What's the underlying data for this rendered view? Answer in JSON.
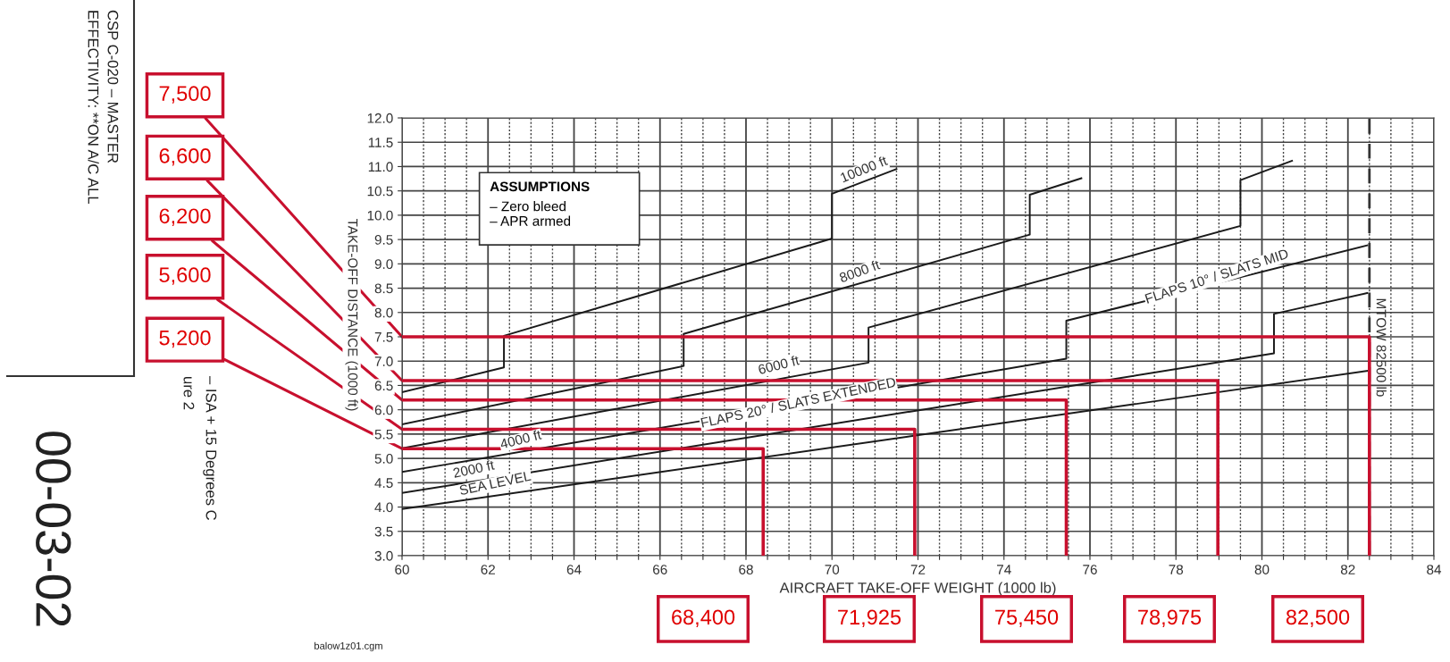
{
  "chart_data": {
    "type": "line",
    "xlabel": "AIRCRAFT TAKE-OFF WEIGHT (1000 lb)",
    "ylabel": "TAKE-OFF DISTANCE (1000 ft)",
    "xlim": [
      60,
      84
    ],
    "ylim": [
      3,
      12
    ],
    "xticks": [
      60,
      {
        "value": 60.5,
        "label": null
      },
      {
        "value": 61,
        "label": null
      },
      {
        "value": 61.5,
        "label": null
      },
      62,
      {
        "value": 62.5,
        "label": null
      },
      {
        "value": 63,
        "label": null
      },
      {
        "value": 63.5,
        "label": null
      },
      64,
      {
        "value": 64.5,
        "label": null
      },
      {
        "value": 65,
        "label": null
      },
      {
        "value": 65.5,
        "label": null
      },
      66,
      {
        "value": 66.5,
        "label": null
      },
      {
        "value": 67,
        "label": null
      },
      {
        "value": 67.5,
        "label": null
      },
      68,
      {
        "value": 68.5,
        "label": null
      },
      {
        "value": 69,
        "label": null
      },
      {
        "value": 69.5,
        "label": null
      },
      70,
      {
        "value": 70.5,
        "label": null
      },
      {
        "value": 71,
        "label": null
      },
      {
        "value": 71.5,
        "label": null
      },
      72,
      {
        "value": 72.5,
        "label": null
      },
      {
        "value": 73,
        "label": null
      },
      {
        "value": 73.5,
        "label": null
      },
      74,
      {
        "value": 74.5,
        "label": null
      },
      {
        "value": 75,
        "label": null
      },
      {
        "value": 75.5,
        "label": null
      },
      76,
      {
        "value": 76.5,
        "label": null
      },
      {
        "value": 77,
        "label": null
      },
      {
        "value": 77.5,
        "label": null
      },
      78,
      {
        "value": 78.5,
        "label": null
      },
      {
        "value": 79,
        "label": null
      },
      {
        "value": 79.5,
        "label": null
      },
      80,
      {
        "value": 80.5,
        "label": null
      },
      {
        "value": 81,
        "label": null
      },
      {
        "value": 81.5,
        "label": null
      },
      82,
      {
        "value": 82.5,
        "label": null
      },
      {
        "value": 83,
        "label": null
      },
      {
        "value": 83.5,
        "label": null
      },
      84
    ],
    "yticks": [
      {
        "value": 3,
        "label": "3.0"
      },
      3.5,
      {
        "value": 4,
        "label": "4.0"
      },
      4.5,
      {
        "value": 5,
        "label": "5.0"
      },
      5.5,
      {
        "value": 6,
        "label": "6.0"
      },
      6.5,
      {
        "value": 7,
        "label": "7.0"
      },
      7.5,
      {
        "value": 8,
        "label": "8.0"
      },
      8.5,
      {
        "value": 9,
        "label": "9.0"
      },
      9.5,
      {
        "value": 10,
        "label": "10.0"
      },
      10.5,
      {
        "value": 11,
        "label": "11.0"
      },
      11.5,
      {
        "value": 12,
        "label": "12.0"
      }
    ],
    "grid": true,
    "marker": "none",
    "line_style": "solid",
    "series": [
      {
        "color": "#1a1a1a",
        "x": [
          60,
          62.37,
          62.37,
          70.0,
          70.0,
          71.5
        ],
        "values": [
          6.36,
          6.87,
          7.52,
          9.52,
          10.44,
          10.95
        ]
      },
      {
        "color": "#1a1a1a",
        "x": [
          60,
          66.55,
          66.55,
          74.6,
          74.6,
          75.8
        ],
        "values": [
          5.7,
          6.9,
          7.56,
          9.6,
          10.42,
          10.76
        ]
      },
      {
        "color": "#1a1a1a",
        "x": [
          60,
          70.85,
          70.85,
          79.5,
          79.5,
          80.7
        ],
        "values": [
          5.21,
          6.97,
          7.69,
          9.78,
          10.72,
          11.12
        ]
      },
      {
        "color": "#1a1a1a",
        "x": [
          60,
          75.45,
          75.45,
          82.45
        ],
        "values": [
          4.72,
          7.05,
          7.83,
          9.38
        ]
      },
      {
        "color": "#1a1a1a",
        "x": [
          60,
          80.28,
          80.28,
          82.45
        ],
        "values": [
          4.29,
          7.16,
          7.97,
          8.4
        ]
      },
      {
        "color": "#1a1a1a",
        "x": [
          60,
          82.45
        ],
        "values": [
          3.96,
          6.8
        ]
      },
      {
        "color": "#c8102e",
        "x": [
          60,
          68.4,
          68.4
        ],
        "values": [
          5.2,
          5.2,
          3.0
        ]
      },
      {
        "color": "#c8102e",
        "x": [
          60,
          71.925,
          71.925
        ],
        "values": [
          5.6,
          5.6,
          3.0
        ]
      },
      {
        "color": "#c8102e",
        "x": [
          60,
          75.45,
          75.45
        ],
        "values": [
          6.2,
          6.2,
          3.0
        ]
      },
      {
        "color": "#c8102e",
        "x": [
          60,
          78.975,
          78.975
        ],
        "values": [
          6.6,
          6.6,
          3.0
        ]
      },
      {
        "color": "#c8102e",
        "x": [
          60,
          82.5,
          82.5
        ],
        "values": [
          7.5,
          7.5,
          3.0
        ]
      }
    ],
    "ref_lines": [
      {
        "axis": "x",
        "value": 82.5,
        "label": "MTOW 82500 lb",
        "line_style": "dashed",
        "color": "#333333"
      }
    ],
    "annotations": [
      {
        "text": "10000 ft",
        "x": 70.8,
        "y": 10.7
      },
      {
        "text": "8000 ft",
        "x": 70.7,
        "y": 8.6
      },
      {
        "text": "6000 ft",
        "x": 68.8,
        "y": 6.67
      },
      {
        "text": "4000 ft",
        "x": 62.8,
        "y": 5.14
      },
      {
        "text": "2000 ft",
        "x": 61.7,
        "y": 4.53
      },
      {
        "text": "SEA LEVEL",
        "x": 62.2,
        "y": 4.24
      },
      "FLAPS 20° / SLATS EXTENDED",
      "FLAPS 10° / SLATS MID",
      {
        "text": "7,500",
        "x": 60,
        "y": 7.5
      },
      {
        "text": "6,600",
        "x": 60,
        "y": 6.6
      },
      {
        "text": "6,200",
        "x": 60,
        "y": 6.2
      },
      {
        "text": "5,600",
        "x": 60,
        "y": 5.6
      },
      {
        "text": "5,200",
        "x": 60,
        "y": 5.2
      },
      "68,400",
      "71,925",
      "75,450",
      "78,975",
      "82,500",
      "ASSUMPTIONS",
      "– Zero bleed",
      "– APR armed",
      "CSP C-020 – MASTER",
      "EFFECTIVITY: **ON A/C ALL",
      "00-03-02",
      "– ISA + 15 Degrees C",
      "ure 2",
      "balow1z01.cgm"
    ]
  }
}
